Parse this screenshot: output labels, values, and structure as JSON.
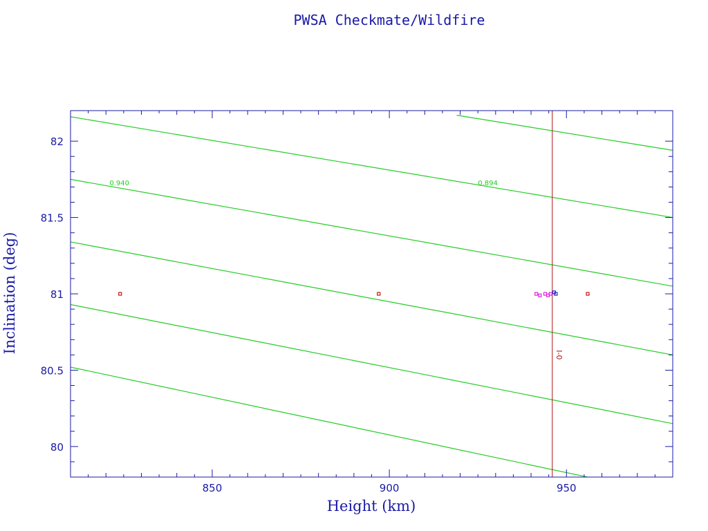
{
  "chart_data": {
    "type": "scatter",
    "title": "PWSA Checkmate/Wildfire",
    "xlabel": "Height (km)",
    "ylabel": "Inclination (deg)",
    "xlim": [
      810,
      980
    ],
    "ylim": [
      79.8,
      82.2
    ],
    "x_ticks": [
      "850",
      "900",
      "950"
    ],
    "x_tick_values": [
      850,
      900,
      950
    ],
    "y_ticks": [
      "80",
      "80.5",
      "81",
      "81.5",
      "82"
    ],
    "y_tick_values": [
      80,
      80.5,
      81,
      81.5,
      82
    ],
    "grid": false,
    "reference_line": {
      "x": 946,
      "label": "I-0",
      "label_y": 80.6,
      "color": "#aa1111"
    },
    "contour_lines": [
      {
        "points": [
          [
            810,
            82.16
          ],
          [
            980,
            81.5
          ]
        ]
      },
      {
        "points": [
          [
            810,
            81.75
          ],
          [
            980,
            81.05
          ]
        ]
      },
      {
        "points": [
          [
            810,
            81.34
          ],
          [
            980,
            80.6
          ]
        ]
      },
      {
        "points": [
          [
            810,
            80.93
          ],
          [
            980,
            80.15
          ]
        ]
      },
      {
        "points": [
          [
            810,
            80.52
          ],
          [
            960,
            79.78
          ]
        ]
      },
      {
        "points": [
          [
            919,
            82.17
          ],
          [
            980,
            81.94
          ]
        ]
      }
    ],
    "contour_labels": [
      {
        "text": "0.940",
        "x": 821,
        "y": 81.73
      },
      {
        "text": "0.894",
        "x": 925,
        "y": 81.73
      }
    ],
    "series": [
      {
        "color": "#cc1111",
        "points": [
          [
            824,
            81.0
          ],
          [
            897,
            81.0
          ],
          [
            956,
            81.0
          ]
        ]
      },
      {
        "color": "#dd22dd",
        "points": [
          [
            941.5,
            81.0
          ],
          [
            942.5,
            80.99
          ],
          [
            944,
            81.0
          ],
          [
            944.8,
            80.99
          ],
          [
            945.5,
            81.0
          ]
        ]
      },
      {
        "color": "#2222cc",
        "points": [
          [
            946.5,
            81.01
          ],
          [
            947,
            81.0
          ]
        ]
      }
    ],
    "colors": {
      "axis": "#1a1aa6",
      "contour": "#22cc22"
    }
  }
}
